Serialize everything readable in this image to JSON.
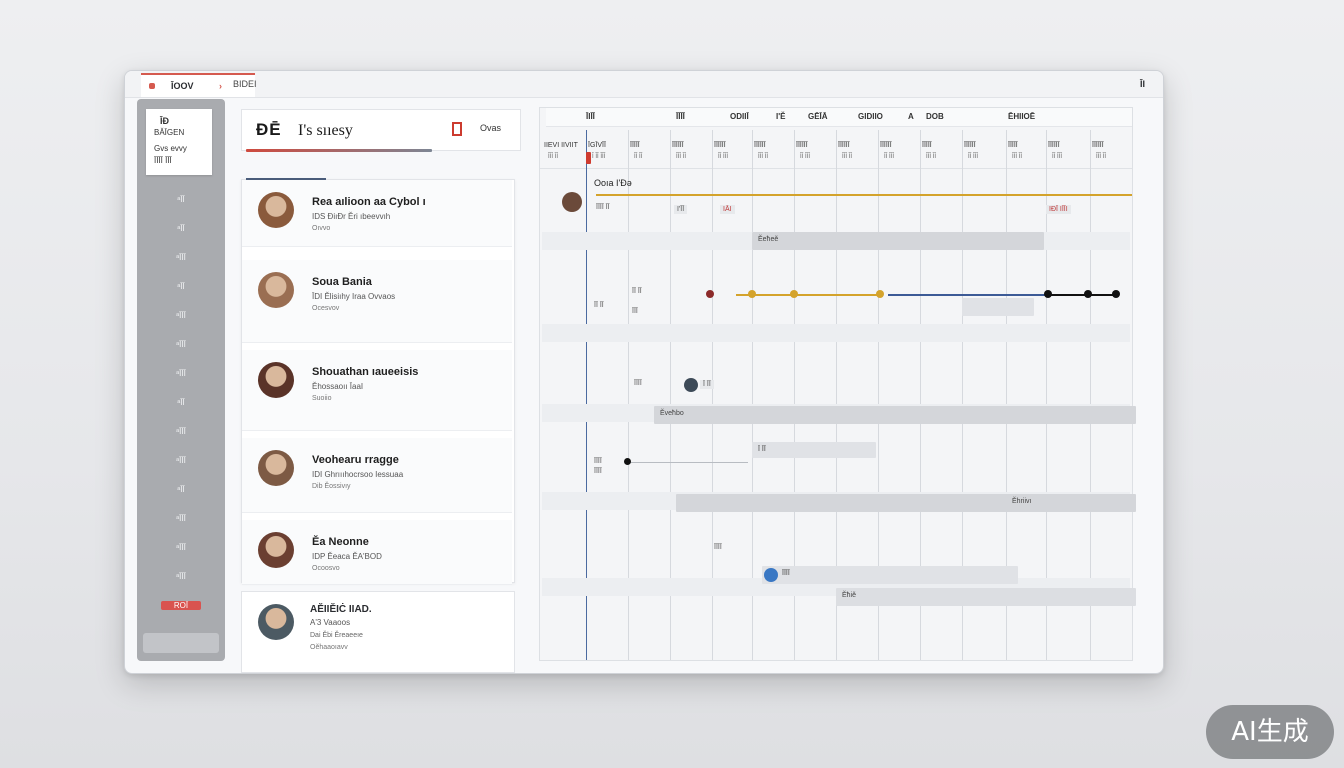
{
  "window": {
    "tab_label": "ĪOOV",
    "tab_chevron": "›",
    "tab2_label": "BIDEI",
    "control_label": "ĪI"
  },
  "sidebar": {
    "card_line1": "ĪĐ",
    "card_line2": "BĂĪGEN",
    "card_line3": "Gvs evvy",
    "card_line4": "ĪĪĪĪ ĪĪĪ",
    "items": [
      "ᵃĪĪ",
      "ᵃĪĪ",
      "ᵃĪĪĪ",
      "ᵃĪĪ",
      "ᵃĪĪĪ",
      "ᵃĪĪĪ",
      "ᵃĪĪĪ",
      "ᵃĪĪ",
      "ᵃĪĪĪ",
      "ᵃĪĪĪ",
      "ᵃĪĪ",
      "ᵃĪĪĪ",
      "ᵃĪĪĪ",
      "ᵃĪĪĪ",
      "ROĪ"
    ]
  },
  "header": {
    "icon_text": "ĐĒ",
    "title": "I's sııesy",
    "button_label": "Ovas"
  },
  "people": [
    {
      "name": "Rea aılioon  aa Cybol ı",
      "role": "IDS ĐiıĐr Ĕri ıbeevvıh",
      "meta": "Oıvvo",
      "avatar_color": "#8a5a3c"
    },
    {
      "name": "Soua Bania",
      "role": "ĪDI Ĕlisiıhy  Iraa Ovvaos",
      "meta": "Ocesvov",
      "avatar_color": "#9a6e52"
    },
    {
      "name": "Shouathan ıaueeisis",
      "role": "Ĕhossaoıı  ĪaaI",
      "meta": "Suoiio",
      "avatar_color": "#5a3328"
    },
    {
      "name": "Veohearu rragge",
      "role": "IDI Ghrıııhocrsoo Iessuaa",
      "meta": "Dib Ĕossivıy",
      "avatar_color": "#7d5a44"
    },
    {
      "name": "Ĕa Neonne",
      "role": "IDP  Ĕeaca  ĔA'BOD",
      "meta": "Ocoosvo",
      "avatar_color": "#6b3f31"
    }
  ],
  "last_person": {
    "name": "AĔIIĔIĊ IIAD.",
    "role": "A'3 Vaaoos",
    "line3": "Dai Ĕbi Ĕreaeeıe",
    "meta": "Oĕhaaoıavv",
    "avatar_color": "#4c5a63"
  },
  "gantt": {
    "toolbar": [
      "ĪIĪĪ",
      "ĪĪĪĪ",
      "ODIIĪ",
      "I'Ĕ",
      "GĒĪĀ",
      "GIDIIO",
      "A",
      "DOB",
      "ĒHIIOĒ"
    ],
    "columns": [
      {
        "label": "IIEVI IIVIIT",
        "sub": "ĪĪĪ ĪĪ"
      },
      {
        "label": "ĪGĪVĪĪ",
        "sub": "Ī ĪĪ ĪĪĪ"
      },
      {
        "label": "ĪĪĪĪĪ",
        "sub": "ĪĪ ĪĪ"
      },
      {
        "label": "ĪĪĪĪĪĪ",
        "sub": "ĪĪĪ ĪĪ"
      },
      {
        "label": "ĪĪĪĪĪĪ",
        "sub": "ĪĪ ĪĪĪ"
      },
      {
        "label": "ĪĪĪĪĪĪ",
        "sub": "ĪĪĪ ĪĪ"
      },
      {
        "label": "ĪĪĪĪĪĪ",
        "sub": "ĪĪ ĪĪĪ"
      },
      {
        "label": "ĪĪĪĪĪĪ",
        "sub": "ĪĪĪ ĪĪ"
      },
      {
        "label": "ĪĪĪĪĪĪ",
        "sub": "ĪĪ ĪĪĪ"
      },
      {
        "label": "ĪĪĪĪĪ",
        "sub": "ĪĪĪ ĪĪ"
      },
      {
        "label": "ĪĪĪĪĪĪ",
        "sub": "ĪĪ ĪĪĪ"
      },
      {
        "label": "ĪĪĪĪĪ",
        "sub": "ĪĪĪ ĪĪ"
      },
      {
        "label": "ĪĪĪĪĪĪ",
        "sub": "ĪĪ ĪĪĪ"
      },
      {
        "label": "ĪĪĪĪĪĪ",
        "sub": "ĪĪĪ ĪĪ"
      }
    ],
    "row1_label": "Ooıa   I'Đə",
    "row1_sub": "ĪĪĪĪ   ĪĪ",
    "row1_badge_a": "I'ĪĪ",
    "row1_badge_b": "IĀI",
    "row1_badge_c": "IĐĪ  IĪĪI",
    "bar_a": "Ĕeħeĕ",
    "tick_a": "ĪĪ  ĪĪ",
    "tick_b": "ĪĪ ĪĪ",
    "tick_c": "ĪĪĪ",
    "tick_d": "ĪĪĪĪ",
    "badge_mid": "Ī ĪĪ",
    "bar_b": "Ĕveħbo",
    "badge_c": "Ī ĪĪ",
    "tick_e": "ĪĪĪĪ",
    "tick_f": "ĪĪĪĪ",
    "bar_c": "Ĕhriivı",
    "tick_g": "ĪĪĪĪ",
    "bar_d": "ĪĪĪĪ",
    "bar_e": "Ĕħiĕ",
    "accent_gold": "#d4a32c",
    "accent_blue": "#3c5a96",
    "accent_black": "#111111",
    "accent_red": "#8c2a2a"
  },
  "watermark": "AI生成"
}
